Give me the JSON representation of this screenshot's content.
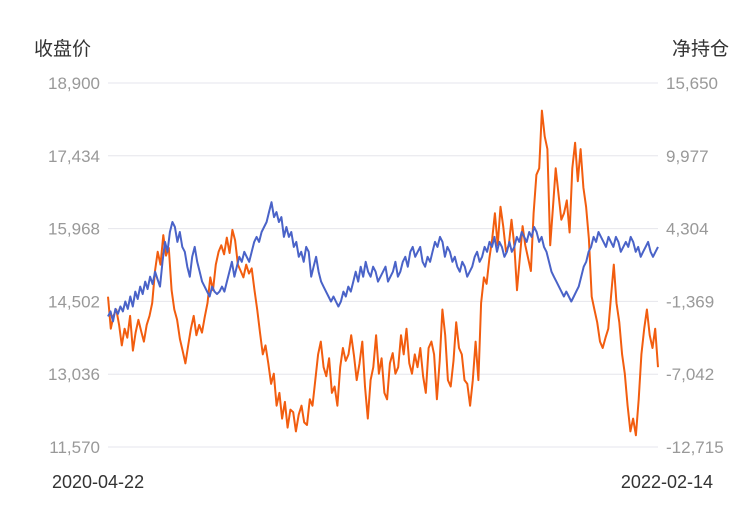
{
  "chart_data": {
    "type": "line",
    "left_axis_title": "收盘价",
    "right_axis_title": "净持仓",
    "left_ticks": [
      "18,900",
      "17,434",
      "15,968",
      "14,502",
      "13,036",
      "11,570"
    ],
    "right_ticks": [
      "15,650",
      "9,977",
      "4,304",
      "-1,369",
      "-7,042",
      "-12,715"
    ],
    "y_left_range": [
      11570,
      18900
    ],
    "y_right_range": [
      -12715,
      15650
    ],
    "x_start_label": "2020-04-22",
    "x_end_label": "2022-02-14",
    "grid": true,
    "colors": {
      "close": "#4a63c8",
      "net_position": "#f25d0f"
    },
    "series": [
      {
        "axis": "left",
        "values": [
          14200,
          14300,
          14100,
          14350,
          14250,
          14400,
          14300,
          14500,
          14350,
          14600,
          14400,
          14700,
          14550,
          14800,
          14650,
          14900,
          14750,
          15000,
          14850,
          15100,
          14950,
          14800,
          15300,
          15700,
          15500,
          15900,
          16100,
          16000,
          15700,
          15900,
          15600,
          15500,
          15200,
          15000,
          15400,
          15600,
          15300,
          15100,
          14900,
          14800,
          14700,
          14600,
          14800,
          14700,
          14650,
          14700,
          14800,
          14700,
          14900,
          15100,
          15300,
          15000,
          15200,
          15400,
          15300,
          15500,
          15400,
          15300,
          15500,
          15700,
          15800,
          15700,
          15900,
          16000,
          16100,
          16300,
          16500,
          16200,
          16300,
          16100,
          16200,
          15800,
          16000,
          15800,
          15900,
          15600,
          15700,
          15400,
          15500,
          15300,
          15600,
          15500,
          15000,
          15200,
          15400,
          15100,
          14900,
          14800,
          14700,
          14600,
          14500,
          14600,
          14500,
          14400,
          14500,
          14700,
          14600,
          14800,
          14700,
          14900,
          15100,
          14900,
          15200,
          15000,
          15300,
          15100,
          15000,
          15200,
          15100,
          14900,
          15000,
          15100,
          15200,
          14900,
          15000,
          15100,
          15300,
          15000,
          15100,
          15300,
          15400,
          15200,
          15500,
          15600,
          15400,
          15500,
          15600,
          15300,
          15200,
          15400,
          15300,
          15500,
          15700,
          15600,
          15800,
          15700,
          15400,
          15600,
          15500,
          15300,
          15400,
          15200,
          15100,
          15300,
          15200,
          15000,
          15100,
          15200,
          15400,
          15500,
          15300,
          15400,
          15600,
          15500,
          15700,
          15600,
          15800,
          15500,
          15700,
          15600,
          15400,
          15500,
          15700,
          15500,
          15600,
          15800,
          15700,
          15900,
          15800,
          15700,
          15900,
          15800,
          16000,
          15900,
          15700,
          15800,
          15600,
          15500,
          15300,
          15100,
          15000,
          14900,
          14800,
          14700,
          14600,
          14700,
          14600,
          14500,
          14600,
          14700,
          14800,
          15000,
          15200,
          15300,
          15500,
          15600,
          15800,
          15700,
          15900,
          15800,
          15700,
          15600,
          15800,
          15700,
          15600,
          15800,
          15700,
          15500,
          15600,
          15700,
          15600,
          15800,
          15700,
          15500,
          15600,
          15400,
          15500,
          15600,
          15700,
          15500,
          15400,
          15500,
          15600
        ]
      },
      {
        "axis": "right",
        "values": [
          -1000,
          -3500,
          -2500,
          -2000,
          -3200,
          -4800,
          -3500,
          -4200,
          -2500,
          -5200,
          -3800,
          -2800,
          -3700,
          -4500,
          -3200,
          -2500,
          -1500,
          1000,
          2500,
          1500,
          3800,
          2200,
          2800,
          -500,
          -2000,
          -2800,
          -4300,
          -5200,
          -6200,
          -4800,
          -3500,
          -2500,
          -4000,
          -3200,
          -3800,
          -2600,
          -1500,
          500,
          -500,
          1500,
          2500,
          3000,
          2300,
          3600,
          2400,
          4200,
          3400,
          1500,
          1000,
          500,
          1500,
          800,
          1200,
          -500,
          -2000,
          -3800,
          -5500,
          -4800,
          -6200,
          -7800,
          -7000,
          -9500,
          -8500,
          -10500,
          -9200,
          -11200,
          -9800,
          -10000,
          -11500,
          -10200,
          -9500,
          -10800,
          -11000,
          -9000,
          -9500,
          -7500,
          -5500,
          -4500,
          -6500,
          -7200,
          -5800,
          -8500,
          -8000,
          -9500,
          -6500,
          -5000,
          -6000,
          -5500,
          -4000,
          -5600,
          -7500,
          -6200,
          -4500,
          -8000,
          -10500,
          -7500,
          -6500,
          -4000,
          -7000,
          -5800,
          -8500,
          -9000,
          -6200,
          -5400,
          -7000,
          -6500,
          -4000,
          -5500,
          -3500,
          -6200,
          -7000,
          -5500,
          -6500,
          -5000,
          -7200,
          -8500,
          -5000,
          -4500,
          -5500,
          -9000,
          -6000,
          -2000,
          -4000,
          -7500,
          -8000,
          -6000,
          -3000,
          -5000,
          -5500,
          -7500,
          -7800,
          -9500,
          -7500,
          -4500,
          -7500,
          -1500,
          500,
          0,
          2000,
          3500,
          5500,
          3000,
          6000,
          4500,
          2500,
          3000,
          5000,
          3000,
          -500,
          2000,
          4500,
          3000,
          2000,
          1000,
          5500,
          8500,
          9000,
          13500,
          11500,
          10500,
          3000,
          6000,
          9000,
          7000,
          5000,
          5500,
          6500,
          4000,
          9000,
          11000,
          8000,
          10500,
          7500,
          6000,
          3500,
          -1000,
          -2000,
          -3000,
          -4500,
          -5000,
          -4200,
          -3500,
          -1000,
          1500,
          -1500,
          -3000,
          -5500,
          -7000,
          -9500,
          -11500,
          -10500,
          -11800,
          -9000,
          -5500,
          -3500,
          -2000,
          -4000,
          -5000,
          -3500,
          -6500
        ]
      }
    ]
  }
}
